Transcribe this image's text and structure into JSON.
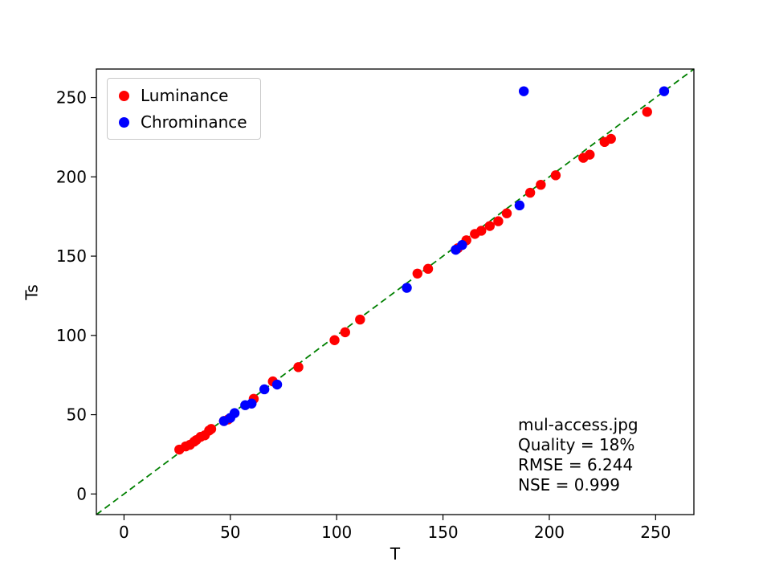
{
  "chart_data": {
    "type": "scatter",
    "title": "",
    "xlabel": "T",
    "ylabel": "Ts",
    "xlim": [
      -13,
      268
    ],
    "ylim": [
      -13,
      268
    ],
    "xticks": [
      0,
      50,
      100,
      150,
      200,
      250
    ],
    "yticks": [
      0,
      50,
      100,
      150,
      200,
      250
    ],
    "grid": false,
    "legend_position": "upper-left",
    "legend": [
      {
        "label": "Luminance",
        "color": "#ff0000"
      },
      {
        "label": "Chrominance",
        "color": "#0000ff"
      }
    ],
    "identity_line": {
      "color": "#008000",
      "style": "dashed",
      "x": [
        -13,
        268
      ],
      "y": [
        -13,
        268
      ]
    },
    "series": [
      {
        "name": "Luminance",
        "color": "#ff0000",
        "points": [
          [
            26,
            28
          ],
          [
            29,
            30
          ],
          [
            31,
            31
          ],
          [
            33,
            33
          ],
          [
            34,
            34
          ],
          [
            36,
            36
          ],
          [
            38,
            37
          ],
          [
            40,
            40
          ],
          [
            41,
            41
          ],
          [
            47,
            46
          ],
          [
            49,
            47
          ],
          [
            61,
            60
          ],
          [
            70,
            71
          ],
          [
            82,
            80
          ],
          [
            99,
            97
          ],
          [
            104,
            102
          ],
          [
            111,
            110
          ],
          [
            138,
            139
          ],
          [
            143,
            142
          ],
          [
            157,
            155
          ],
          [
            161,
            160
          ],
          [
            165,
            164
          ],
          [
            168,
            166
          ],
          [
            172,
            169
          ],
          [
            176,
            172
          ],
          [
            180,
            177
          ],
          [
            191,
            190
          ],
          [
            196,
            195
          ],
          [
            203,
            201
          ],
          [
            216,
            212
          ],
          [
            219,
            214
          ],
          [
            226,
            222
          ],
          [
            229,
            224
          ],
          [
            246,
            241
          ]
        ]
      },
      {
        "name": "Chrominance",
        "color": "#0000ff",
        "points": [
          [
            47,
            46
          ],
          [
            50,
            48
          ],
          [
            52,
            51
          ],
          [
            57,
            56
          ],
          [
            60,
            57
          ],
          [
            66,
            66
          ],
          [
            72,
            69
          ],
          [
            133,
            130
          ],
          [
            156,
            154
          ],
          [
            159,
            157
          ],
          [
            186,
            182
          ],
          [
            188,
            254
          ],
          [
            254,
            254
          ]
        ]
      }
    ],
    "annotation": {
      "lines": [
        "mul-access.jpg",
        "Quality = 18%",
        "RMSE = 6.244",
        "NSE = 0.999"
      ]
    }
  }
}
